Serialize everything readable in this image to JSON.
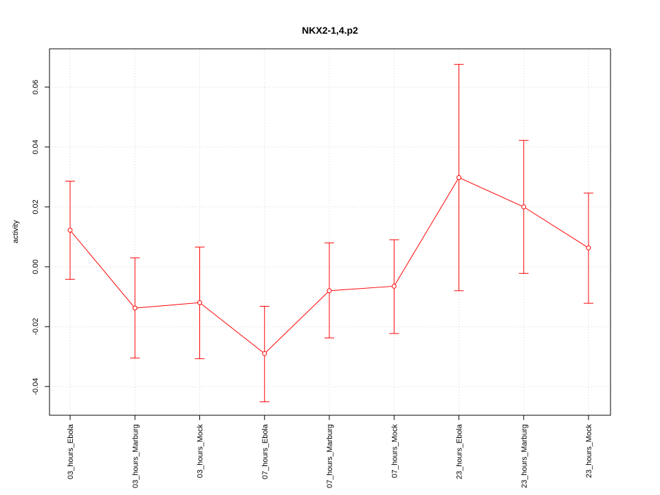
{
  "colors": {
    "series": "#ff0000",
    "grid": "#d3d3d3",
    "axis": "#000000",
    "background": "#ffffff"
  },
  "chart_data": {
    "type": "line",
    "title": "NKX2-1,4.p2",
    "xlabel": "",
    "ylabel": "activity",
    "categories": [
      "03_hours_Ebola",
      "03_hours_Marburg",
      "03_hours_Mock",
      "07_hours_Ebola",
      "07_hours_Marburg",
      "07_hours_Mock",
      "23_hours_Ebola",
      "23_hours_Marburg",
      "23_hours_Mock"
    ],
    "series": [
      {
        "values": [
          0.0122,
          -0.0138,
          -0.012,
          -0.029,
          -0.008,
          -0.0065,
          0.0298,
          0.02,
          0.0063
        ],
        "error_upper": [
          0.0286,
          0.003,
          0.0066,
          -0.0132,
          0.008,
          0.009,
          0.0676,
          0.0422,
          0.0246
        ],
        "error_lower": [
          -0.0042,
          -0.0305,
          -0.0307,
          -0.0451,
          -0.0238,
          -0.0223,
          -0.008,
          -0.0022,
          -0.0122
        ]
      }
    ],
    "yticks": [
      -0.04,
      -0.02,
      0.0,
      0.02,
      0.04,
      0.06
    ],
    "ytick_labels": [
      "-0.04",
      "-0.02",
      "0.00",
      "0.02",
      "0.04",
      "0.06"
    ],
    "ylim": [
      -0.0496,
      0.0728
    ],
    "grid": true,
    "markers": "open-circle",
    "error_bars": true
  }
}
